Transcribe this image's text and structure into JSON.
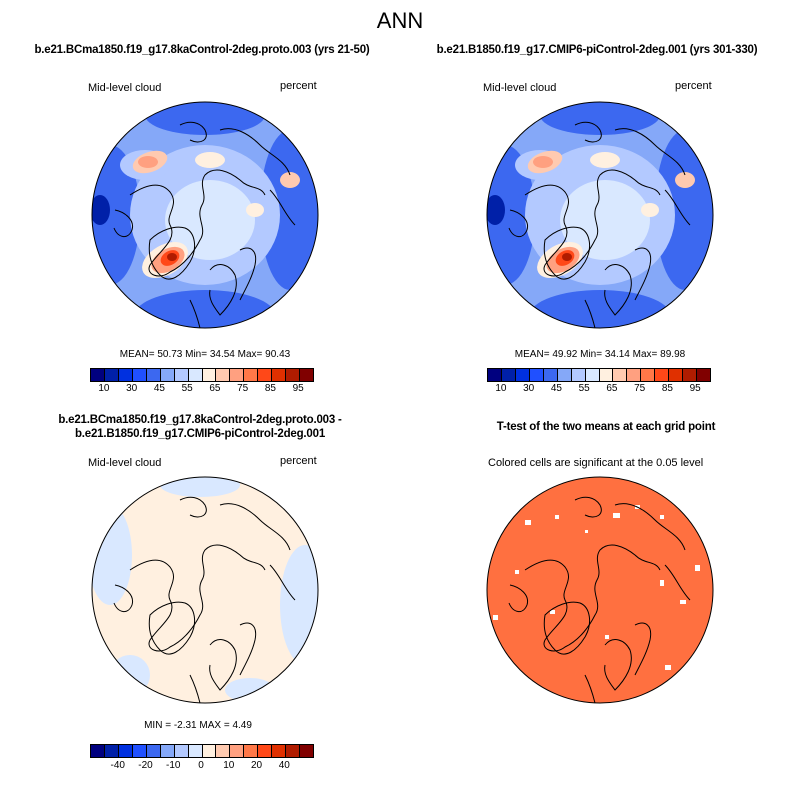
{
  "title": "ANN",
  "panels": [
    {
      "title": "b.e21.BCma1850.f19_g17.8kaControl-2deg.proto.003 (yrs 21-50)",
      "left_label": "Mid-level cloud",
      "right_label": "percent",
      "stats": "MEAN=  50.73   Min=  34.54   Max=  90.43"
    },
    {
      "title": "b.e21.B1850.f19_g17.CMIP6-piControl-2deg.001 (yrs 301-330)",
      "left_label": "Mid-level cloud",
      "right_label": "percent",
      "stats": "MEAN=  49.92   Min=  34.14   Max=  89.98"
    },
    {
      "title": "b.e21.BCma1850.f19_g17.8kaControl-2deg.proto.003 - b.e21.B1850.f19_g17.CMIP6-piControl-2deg.001",
      "left_label": "Mid-level cloud",
      "right_label": "percent",
      "stats": "MIN =  -2.31 MAX =   4.49"
    },
    {
      "title": "T-test of the two means at each grid point",
      "subtitle": "Colored cells are significant at the 0.05 level"
    }
  ],
  "colorbar_colors": [
    "#00007f",
    "#0020a8",
    "#0030e0",
    "#2050ff",
    "#3c68f0",
    "#85a8f8",
    "#b3c9ff",
    "#d9e8ff",
    "#fff0e0",
    "#ffcab0",
    "#ffa080",
    "#ff7848",
    "#ff4818",
    "#e03000",
    "#b01c00",
    "#800000"
  ],
  "abs_colorbar_labels": [
    "10",
    "30",
    "45",
    "55",
    "65",
    "75",
    "85",
    "95"
  ],
  "diff_colorbar_labels": [
    "-40",
    "-20",
    "-10",
    "0",
    "10",
    "20",
    "40"
  ],
  "ttest_color": "#ff7040"
}
